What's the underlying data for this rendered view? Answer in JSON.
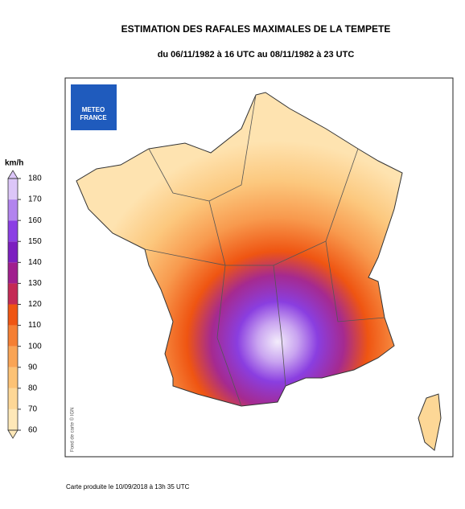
{
  "header": {
    "title": "ESTIMATION DES RAFALES MAXIMALES DE LA TEMPETE",
    "subtitle": "du 06/11/1982 à 16 UTC au 08/11/1982 à 23 UTC"
  },
  "legend": {
    "unit": "km/h",
    "ticks": [
      60,
      70,
      80,
      90,
      100,
      110,
      120,
      130,
      140,
      150,
      160,
      170,
      180
    ],
    "colors": [
      "#fee8b8",
      "#fdd796",
      "#fcc275",
      "#f9a455",
      "#f57f33",
      "#ef5512",
      "#c42a55",
      "#a01f8e",
      "#7c1fc0",
      "#8b3fe4",
      "#b284ee",
      "#dcc6f8"
    ]
  },
  "logo": {
    "lines": [
      "METEO",
      "FRANCE"
    ]
  },
  "map": {
    "credit": "Fond de carte © IGN"
  },
  "footer": {
    "text": "Carte produite le 10/09/2018 à 13h 35 UTC"
  }
}
